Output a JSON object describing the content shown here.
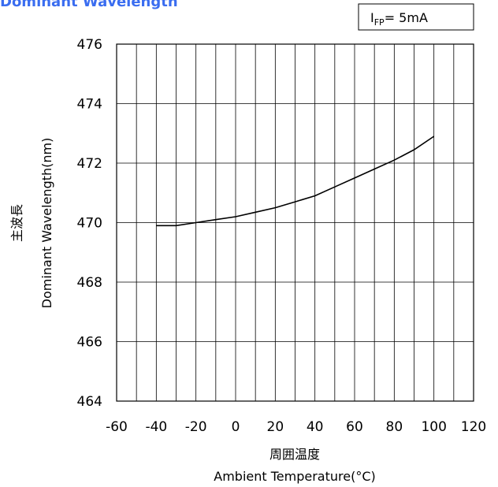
{
  "title": "Dominant Wavelength",
  "condition": {
    "symbol": "I",
    "subscript": "FP",
    "value": "= 5mA"
  },
  "chart_data": {
    "type": "line",
    "title": "Dominant Wavelength",
    "xlabel_jp": "周囲温度",
    "xlabel": "Ambient Temperature(°C)",
    "ylabel_jp": "主波長",
    "ylabel": "Dominant Wavelength(nm)",
    "xlim": [
      -60,
      120
    ],
    "ylim": [
      464,
      476
    ],
    "xticks": [
      -60,
      -40,
      -20,
      0,
      20,
      40,
      60,
      80,
      100,
      120
    ],
    "yticks": [
      464,
      466,
      468,
      470,
      472,
      474,
      476
    ],
    "x_grid_step": 10,
    "grid": true,
    "series": [
      {
        "x": [
          -40,
          -30,
          -20,
          -10,
          0,
          10,
          20,
          30,
          40,
          50,
          60,
          70,
          80,
          90,
          100
        ],
        "y": [
          469.9,
          469.9,
          470.0,
          470.1,
          470.2,
          470.35,
          470.5,
          470.7,
          470.9,
          471.2,
          471.5,
          471.8,
          472.1,
          472.45,
          472.9
        ]
      }
    ]
  }
}
